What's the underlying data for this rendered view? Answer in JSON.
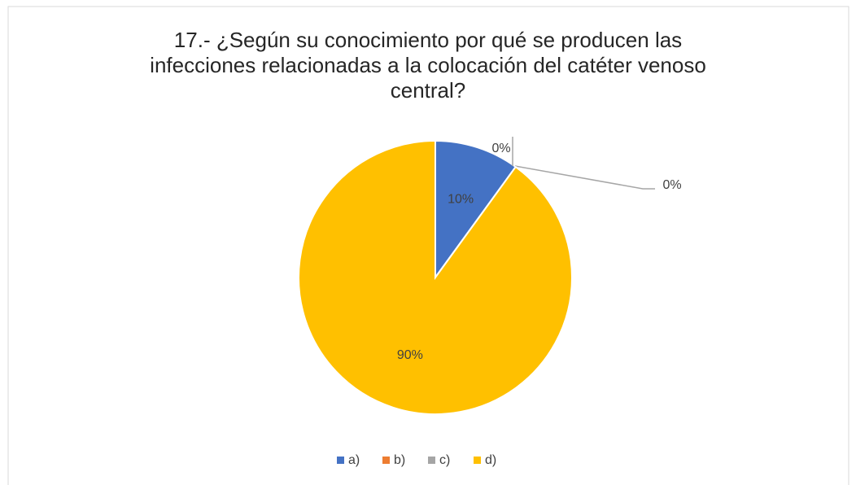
{
  "chart_data": {
    "type": "pie",
    "title": "17.- ¿Según su conocimiento por qué se producen las infecciones relacionadas a la colocación del catéter venoso central?",
    "categories": [
      "a)",
      "b)",
      "c)",
      "d)"
    ],
    "values": [
      10,
      0,
      0,
      90
    ],
    "value_labels": [
      "10%",
      "0%",
      "0%",
      "90%"
    ],
    "colors": [
      "#4472c4",
      "#ed7d31",
      "#a5a5a5",
      "#ffc000"
    ],
    "legend": "bottom"
  }
}
